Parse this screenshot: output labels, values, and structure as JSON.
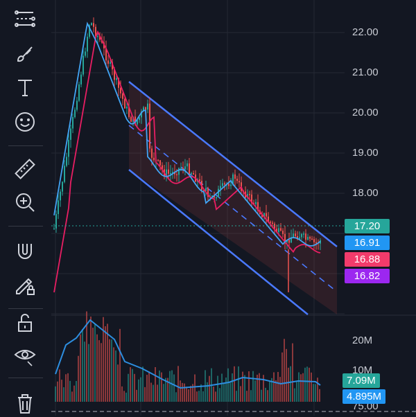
{
  "toolbar": {
    "items": [
      {
        "name": "trend-line-tools-icon"
      },
      {
        "name": "brush-tool-icon"
      },
      {
        "name": "text-tool-icon"
      },
      {
        "name": "emoji-tool-icon"
      },
      {
        "name": "ruler-icon"
      },
      {
        "name": "zoom-in-icon"
      },
      {
        "name": "magnet-icon"
      },
      {
        "name": "lock-drawing-icon"
      },
      {
        "name": "unlock-icon"
      },
      {
        "name": "eye-hide-icon"
      },
      {
        "name": "trash-icon"
      }
    ]
  },
  "price_axis": {
    "labels": [
      "22.00",
      "21.00",
      "20.00",
      "19.00",
      "18.00"
    ]
  },
  "price_tags": [
    {
      "text": "17.20",
      "color": "#26a69a"
    },
    {
      "text": "16.91",
      "color": "#2196f3"
    },
    {
      "text": "16.88",
      "color": "#f23b6b"
    },
    {
      "text": "16.82",
      "color": "#9c27f0"
    }
  ],
  "volume_axis": {
    "labels": [
      "20M",
      "10M",
      "75.00"
    ]
  },
  "volume_tags": [
    {
      "text": "7.09M",
      "color": "#26a69a"
    },
    {
      "text": "4.895M",
      "color": "#2196f3"
    }
  ],
  "colors": {
    "background": "#131722",
    "up": "#26a69a",
    "down": "#ef5350",
    "channel": "#4a79ff",
    "ma_fast": "#42a5f5",
    "ma_slow": "#e91e63",
    "grid": "#262a35"
  },
  "chart_data": {
    "type": "candlestick",
    "ylim": [
      15.0,
      22.8
    ],
    "ma_fast_last": 16.91,
    "ma_slow_last": 16.88,
    "last_price": 17.2,
    "other_line_last": 16.82
  }
}
